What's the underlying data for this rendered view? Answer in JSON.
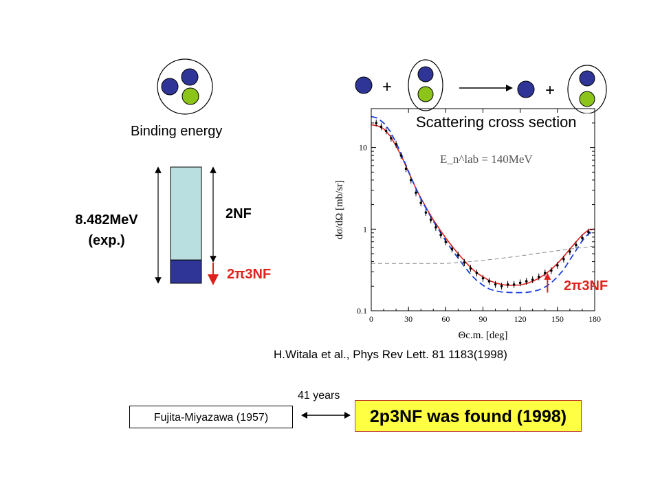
{
  "labels": {
    "binding_energy": "Binding energy",
    "scattering_cross_section": "Scattering cross section",
    "plus_1": "+",
    "plus_2": "+",
    "energy_value_line1": "8.482MeV",
    "energy_value_line2": "(exp.)",
    "two_nf": "2NF",
    "two_pi_3nf_left": "2π3NF",
    "two_pi_3nf_right": "2π3NF",
    "citation": "H.Witala et al., Phys Rev Lett. 81  1183(1998)",
    "years": "41 years",
    "fujita": "Fujita-Miyazawa (1957)",
    "found": "2p3NF was found (1998)"
  },
  "colors": {
    "nucleon_blue": "#2f3596",
    "nucleon_green": "#8cc41a",
    "bar_light": "#b9dfe1",
    "bar_dark": "#2f3596",
    "accent_red": "#e0201a",
    "dashed_blue": "#1a3fe0",
    "dashed_gray": "#888888",
    "highlight_yellow": "#ffff44"
  },
  "energy_bar": {
    "total_mev": 8.482,
    "three_nf_fraction": 0.2
  },
  "chart_data": {
    "type": "line",
    "annotation": "E_n^lab = 140MeV",
    "xlabel": "Θc.m. [deg]",
    "ylabel": "dσ/dΩ [mb/sr]",
    "xlim": [
      0,
      180
    ],
    "ylim": [
      0.1,
      30
    ],
    "yscale": "log",
    "x_ticks": [
      0,
      30,
      60,
      90,
      120,
      150,
      180
    ],
    "y_ticks": [
      {
        "value": 0.1,
        "label": "0.1"
      },
      {
        "value": 1,
        "label": "1"
      },
      {
        "value": 10,
        "label": "10"
      }
    ],
    "series": [
      {
        "style": "solid-red",
        "x": [
          0,
          5,
          10,
          15,
          20,
          25,
          30,
          35,
          40,
          45,
          50,
          55,
          60,
          65,
          70,
          75,
          80,
          85,
          90,
          95,
          100,
          105,
          110,
          115,
          120,
          125,
          130,
          135,
          140,
          145,
          150,
          155,
          160,
          165,
          170,
          175,
          180
        ],
        "y": [
          19,
          18.5,
          17,
          14,
          10.5,
          7.5,
          5,
          3.4,
          2.4,
          1.75,
          1.3,
          1.0,
          0.78,
          0.62,
          0.5,
          0.41,
          0.34,
          0.29,
          0.26,
          0.235,
          0.22,
          0.21,
          0.205,
          0.205,
          0.207,
          0.215,
          0.23,
          0.25,
          0.28,
          0.32,
          0.38,
          0.46,
          0.57,
          0.7,
          0.85,
          0.98,
          1.0
        ]
      },
      {
        "style": "dashed-blue",
        "x": [
          0,
          5,
          10,
          15,
          20,
          25,
          30,
          35,
          40,
          45,
          50,
          55,
          60,
          65,
          70,
          75,
          80,
          85,
          90,
          95,
          100,
          105,
          110,
          115,
          120,
          125,
          130,
          135,
          140,
          145,
          150,
          155,
          160,
          165,
          170,
          175,
          180
        ],
        "y": [
          24,
          23,
          20,
          16,
          11.5,
          7.8,
          5.1,
          3.4,
          2.35,
          1.7,
          1.25,
          0.95,
          0.72,
          0.56,
          0.44,
          0.35,
          0.28,
          0.235,
          0.205,
          0.185,
          0.175,
          0.17,
          0.168,
          0.167,
          0.167,
          0.168,
          0.172,
          0.18,
          0.195,
          0.22,
          0.26,
          0.32,
          0.42,
          0.55,
          0.72,
          0.88,
          0.95
        ]
      },
      {
        "style": "dashed-gray",
        "x": [
          0,
          20,
          40,
          60,
          80,
          100,
          120,
          140,
          160,
          180
        ],
        "y": [
          0.38,
          0.38,
          0.38,
          0.38,
          0.4,
          0.43,
          0.47,
          0.52,
          0.57,
          0.62
        ]
      },
      {
        "style": "data-points",
        "x": [
          4,
          8,
          12,
          16,
          20,
          24,
          28,
          32,
          36,
          40,
          44,
          48,
          52,
          56,
          60,
          65,
          70,
          75,
          80,
          85,
          90,
          95,
          100,
          105,
          110,
          115,
          120,
          125,
          130,
          135,
          140,
          145,
          150,
          155,
          160,
          165,
          170,
          175
        ],
        "y": [
          20,
          18,
          16,
          13,
          11,
          8,
          5.5,
          4,
          2.8,
          2.1,
          1.6,
          1.3,
          1.05,
          0.85,
          0.7,
          0.57,
          0.48,
          0.39,
          0.33,
          0.29,
          0.25,
          0.23,
          0.21,
          0.2,
          0.21,
          0.21,
          0.22,
          0.23,
          0.24,
          0.26,
          0.29,
          0.31,
          0.36,
          0.43,
          0.53,
          0.64,
          0.78,
          0.92
        ]
      }
    ]
  }
}
